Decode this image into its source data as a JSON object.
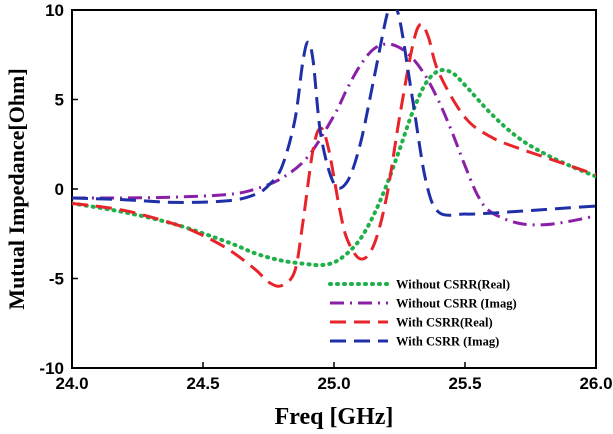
{
  "chart_data": {
    "type": "line",
    "title": "",
    "xlabel": "Freq [GHz]",
    "ylabel": "Mutual Impedance[Ohm]",
    "xlim": [
      24.0,
      26.0
    ],
    "ylim": [
      -10,
      10
    ],
    "xticks": [
      24.0,
      24.5,
      25.0,
      25.5,
      26.0
    ],
    "xtick_labels": [
      "24.0",
      "24.5",
      "25.0",
      "25.5",
      "26.0"
    ],
    "yticks": [
      -10,
      -5,
      0,
      5,
      10
    ],
    "ytick_labels": [
      "-10",
      "-5",
      "0",
      "5",
      "10"
    ],
    "grid": false,
    "legend_position": "bottom-right",
    "series": [
      {
        "name": "Without CSRR(Real)",
        "color": "#1fb04a",
        "dash": "dotted",
        "x": [
          24.0,
          24.2,
          24.4,
          24.6,
          24.7,
          24.8,
          24.9,
          24.95,
          25.0,
          25.05,
          25.1,
          25.15,
          25.2,
          25.25,
          25.3,
          25.35,
          25.4,
          25.45,
          25.5,
          25.6,
          25.7,
          25.8,
          25.9,
          26.0
        ],
        "y": [
          -0.8,
          -1.3,
          -2.0,
          -3.0,
          -3.6,
          -4.0,
          -4.2,
          -4.25,
          -4.1,
          -3.6,
          -2.8,
          -1.5,
          0.2,
          2.2,
          4.3,
          5.9,
          6.6,
          6.5,
          5.8,
          4.2,
          2.9,
          2.0,
          1.3,
          0.7
        ]
      },
      {
        "name": "Without CSRR (Imag)",
        "color": "#8a1fa8",
        "dash": "dashdot",
        "x": [
          24.0,
          24.2,
          24.4,
          24.6,
          24.7,
          24.8,
          24.9,
          25.0,
          25.05,
          25.1,
          25.15,
          25.2,
          25.25,
          25.3,
          25.35,
          25.4,
          25.45,
          25.5,
          25.55,
          25.6,
          25.7,
          25.8,
          25.9,
          26.0
        ],
        "y": [
          -0.5,
          -0.5,
          -0.45,
          -0.3,
          0.0,
          0.6,
          1.8,
          4.1,
          5.6,
          6.9,
          7.8,
          8.1,
          7.9,
          7.3,
          6.3,
          4.9,
          3.2,
          1.3,
          -0.4,
          -1.3,
          -1.9,
          -2.0,
          -1.8,
          -1.5
        ]
      },
      {
        "name": "With CSRR(Real)",
        "color": "#e8242a",
        "dash": "dashed",
        "x": [
          24.0,
          24.2,
          24.4,
          24.5,
          24.6,
          24.7,
          24.75,
          24.8,
          24.85,
          24.88,
          24.92,
          24.95,
          24.98,
          25.02,
          25.05,
          25.1,
          25.15,
          25.2,
          25.25,
          25.3,
          25.33,
          25.36,
          25.4,
          25.5,
          25.6,
          25.7,
          25.8,
          25.9,
          26.0
        ],
        "y": [
          -0.8,
          -1.2,
          -2.0,
          -2.6,
          -3.4,
          -4.5,
          -5.2,
          -5.4,
          -4.6,
          -2.0,
          2.2,
          3.4,
          2.2,
          -1.0,
          -2.8,
          -3.9,
          -3.2,
          -0.5,
          4.0,
          8.0,
          9.2,
          8.5,
          6.5,
          4.0,
          2.9,
          2.3,
          1.8,
          1.3,
          0.8
        ]
      },
      {
        "name": "With CSRR (Imag)",
        "color": "#1f2fa8",
        "dash": "dashed",
        "x": [
          24.0,
          24.2,
          24.4,
          24.6,
          24.7,
          24.75,
          24.8,
          24.85,
          24.88,
          24.9,
          24.92,
          24.95,
          25.0,
          25.05,
          25.1,
          25.15,
          25.2,
          25.22,
          25.25,
          25.3,
          25.35,
          25.4,
          25.5,
          25.6,
          25.7,
          25.8,
          25.9,
          26.0
        ],
        "y": [
          -0.5,
          -0.6,
          -0.75,
          -0.65,
          -0.3,
          0.2,
          1.2,
          3.8,
          7.0,
          8.2,
          7.2,
          3.0,
          0.3,
          0.4,
          2.5,
          6.0,
          9.6,
          10.3,
          9.5,
          5.0,
          0.5,
          -1.3,
          -1.4,
          -1.35,
          -1.25,
          -1.15,
          -1.05,
          -0.95
        ]
      }
    ]
  }
}
